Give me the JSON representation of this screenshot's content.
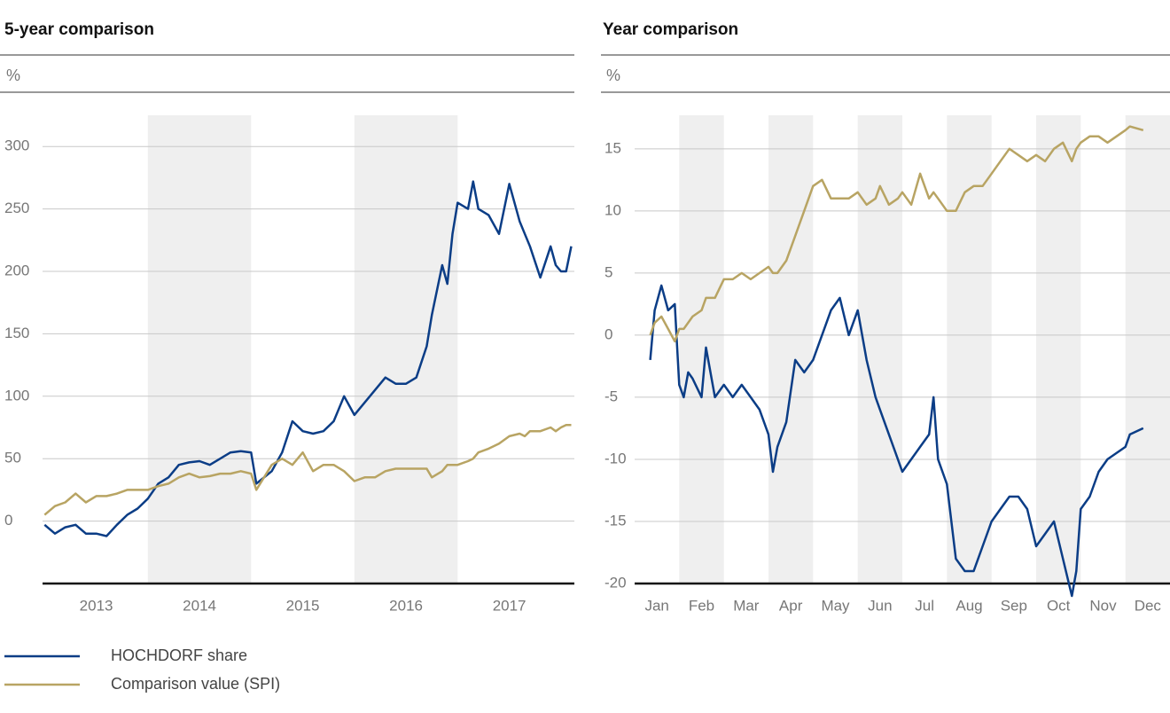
{
  "chart_data": [
    {
      "type": "line",
      "title": "5-year comparison",
      "ylabel": "%",
      "x": [
        2013.0,
        2013.1,
        2013.2,
        2013.3,
        2013.4,
        2013.5,
        2013.6,
        2013.7,
        2013.8,
        2013.9,
        2014.0,
        2014.1,
        2014.2,
        2014.3,
        2014.4,
        2014.5,
        2014.6,
        2014.7,
        2014.8,
        2014.9,
        2015.0,
        2015.05,
        2015.2,
        2015.3,
        2015.4,
        2015.5,
        2015.6,
        2015.7,
        2015.8,
        2015.9,
        2016.0,
        2016.1,
        2016.2,
        2016.3,
        2016.4,
        2016.5,
        2016.6,
        2016.7,
        2016.75,
        2016.85,
        2016.9,
        2016.95,
        2017.0,
        2017.1,
        2017.15,
        2017.2,
        2017.3,
        2017.4,
        2017.5,
        2017.6,
        2017.65,
        2017.7,
        2017.8,
        2017.9,
        2017.95,
        2018.0,
        2018.05,
        2018.1
      ],
      "series": [
        {
          "name": "HOCHDORF share",
          "color": "#0b3d86",
          "values": [
            -3,
            -10,
            -5,
            -3,
            -10,
            -10,
            -12,
            -3,
            5,
            10,
            18,
            30,
            35,
            45,
            47,
            48,
            45,
            50,
            55,
            56,
            55,
            30,
            40,
            55,
            80,
            72,
            70,
            72,
            80,
            100,
            85,
            95,
            105,
            115,
            110,
            110,
            115,
            140,
            165,
            205,
            190,
            230,
            255,
            250,
            272,
            250,
            245,
            230,
            270,
            240,
            230,
            220,
            195,
            220,
            205,
            200,
            200,
            220
          ]
        },
        {
          "name": "Comparison value (SPI)",
          "color": "#b8a463",
          "values": [
            5,
            12,
            15,
            22,
            15,
            20,
            20,
            22,
            25,
            25,
            25,
            28,
            30,
            35,
            38,
            35,
            36,
            38,
            38,
            40,
            38,
            25,
            45,
            50,
            45,
            55,
            40,
            45,
            45,
            40,
            32,
            35,
            35,
            40,
            42,
            42,
            42,
            42,
            35,
            40,
            45,
            45,
            45,
            48,
            50,
            55,
            58,
            62,
            68,
            70,
            68,
            72,
            72,
            75,
            72,
            75,
            77,
            77
          ]
        }
      ],
      "xlim": [
        2012.98,
        2018.13
      ],
      "xticks": [
        {
          "value": 2013.5,
          "label": "2013"
        },
        {
          "value": 2014.5,
          "label": "2014"
        },
        {
          "value": 2015.5,
          "label": "2015"
        },
        {
          "value": 2016.5,
          "label": "2016"
        },
        {
          "value": 2017.5,
          "label": "2017"
        }
      ],
      "ylim": [
        -50,
        325
      ],
      "yticks": [
        0,
        50,
        100,
        150,
        200,
        250,
        300
      ],
      "grid": true
    },
    {
      "type": "line",
      "title": "Year comparison",
      "ylabel": "%",
      "x": [
        0.35,
        0.45,
        0.6,
        0.75,
        0.9,
        1.0,
        1.1,
        1.2,
        1.3,
        1.5,
        1.6,
        1.8,
        2.0,
        2.2,
        2.4,
        2.6,
        2.8,
        3.0,
        3.1,
        3.2,
        3.4,
        3.6,
        3.8,
        4.0,
        4.2,
        4.4,
        4.6,
        4.8,
        5.0,
        5.2,
        5.4,
        5.5,
        5.7,
        5.9,
        6.0,
        6.2,
        6.4,
        6.6,
        6.7,
        6.8,
        7.0,
        7.2,
        7.4,
        7.6,
        7.8,
        8.0,
        8.2,
        8.4,
        8.6,
        8.8,
        9.0,
        9.2,
        9.4,
        9.6,
        9.8,
        9.9,
        10.0,
        10.2,
        10.4,
        10.6,
        10.8,
        11.0,
        11.1,
        11.4
      ],
      "series": [
        {
          "name": "HOCHDORF share",
          "color": "#0b3d86",
          "values": [
            -2,
            2,
            4,
            2,
            2.5,
            -4,
            -5,
            -3,
            -3.5,
            -5,
            -1,
            -5,
            -4,
            -5,
            -4,
            -5,
            -6,
            -8,
            -11,
            -9,
            -7,
            -2,
            -3,
            -2,
            0,
            2,
            3,
            0,
            2,
            -2,
            -5,
            -6,
            -8,
            -10,
            -11,
            -10,
            -9,
            -8,
            -5,
            -10,
            -12,
            -18,
            -19,
            -19,
            -17,
            -15,
            -14,
            -13,
            -13,
            -14,
            -17,
            -16,
            -15,
            -18,
            -21,
            -19,
            -14,
            -13,
            -11,
            -10,
            -9.5,
            -9,
            -8,
            -7.5
          ]
        },
        {
          "name": "Comparison value (SPI)",
          "color": "#b8a463",
          "values": [
            0,
            1,
            1.5,
            0.5,
            -0.5,
            0.5,
            0.5,
            1,
            1.5,
            2,
            3,
            3,
            4.5,
            4.5,
            5,
            4.5,
            5,
            5.5,
            5,
            5,
            6,
            8,
            10,
            12,
            12.5,
            11,
            11,
            11,
            11.5,
            10.5,
            11,
            12,
            10.5,
            11,
            11.5,
            10.5,
            13,
            11,
            11.5,
            11,
            10,
            10,
            11.5,
            12,
            12,
            13,
            14,
            15,
            14.5,
            14,
            14.5,
            14,
            15,
            15.5,
            14,
            15,
            15.5,
            16,
            16,
            15.5,
            16,
            16.5,
            16.8,
            16.5
          ]
        }
      ],
      "xlim": [
        0,
        12
      ],
      "xticks": [
        {
          "value": 0.5,
          "label": "Jan"
        },
        {
          "value": 1.5,
          "label": "Feb"
        },
        {
          "value": 2.5,
          "label": "Mar"
        },
        {
          "value": 3.5,
          "label": "Apr"
        },
        {
          "value": 4.5,
          "label": "May"
        },
        {
          "value": 5.5,
          "label": "Jun"
        },
        {
          "value": 6.5,
          "label": "Jul"
        },
        {
          "value": 7.5,
          "label": "Aug"
        },
        {
          "value": 8.5,
          "label": "Sep"
        },
        {
          "value": 9.5,
          "label": "Oct"
        },
        {
          "value": 10.5,
          "label": "Nov"
        },
        {
          "value": 11.5,
          "label": "Dec"
        }
      ],
      "ylim": [
        -20,
        17.7
      ],
      "yticks": [
        -20,
        -15,
        -10,
        -5,
        0,
        5,
        10,
        15
      ],
      "grid": true
    }
  ]
}
